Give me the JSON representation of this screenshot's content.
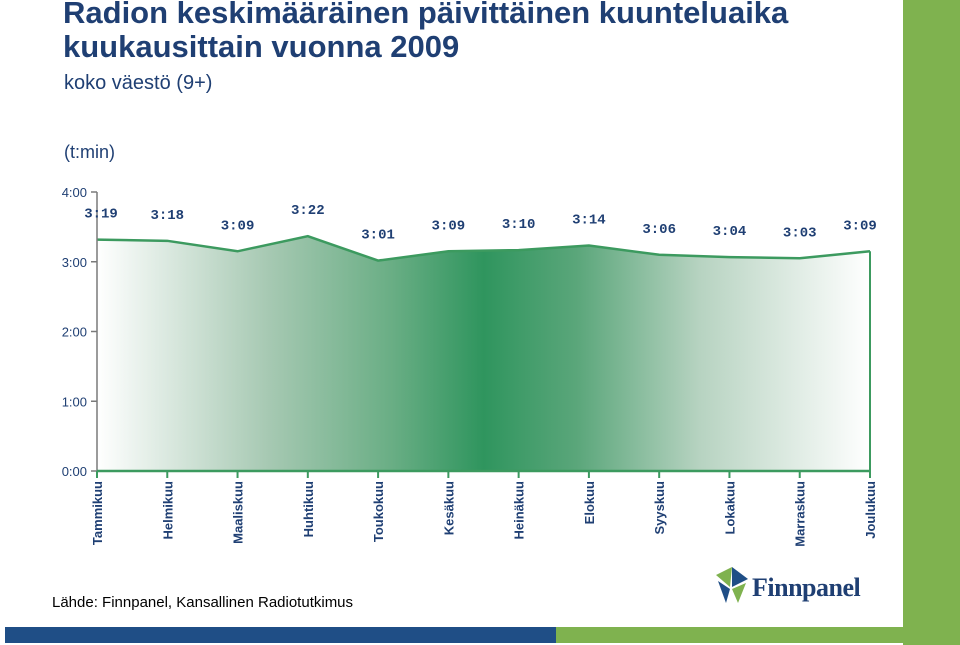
{
  "header": {
    "title": "Radion keskimääräinen päivittäinen kuunteluaika kuukausittain vuonna 2009",
    "subtitle": "koko väestö (9+)",
    "unit": "(t:min)"
  },
  "footer": {
    "source": "Lähde: Finnpanel, Kansallinen Radiotutkimus",
    "logo_text": "Finnpanel"
  },
  "colors": {
    "accent_green": "#7fb24f",
    "line_green": "#3c9a5f",
    "title_blue": "#1f3f73",
    "footer_blue": "#1f4e86"
  },
  "chart_data": {
    "type": "area",
    "title": "Radion keskimääräinen päivittäinen kuunteluaika kuukausittain vuonna 2009",
    "ylabel": "(t:min)",
    "ylim": [
      0,
      240
    ],
    "yticks": [
      {
        "value": 0,
        "label": "0:00"
      },
      {
        "value": 60,
        "label": "1:00"
      },
      {
        "value": 120,
        "label": "2:00"
      },
      {
        "value": 180,
        "label": "3:00"
      },
      {
        "value": 240,
        "label": "4:00"
      }
    ],
    "categories": [
      "Tammikuu",
      "Helmikuu",
      "Maaliskuu",
      "Huhtikuu",
      "Toukokuu",
      "Kesäkuu",
      "Heinäkuu",
      "Elokuu",
      "Syyskuu",
      "Lokakuu",
      "Marraskuu",
      "Joulukuu"
    ],
    "values": [
      199,
      198,
      189,
      202,
      181,
      189,
      190,
      194,
      186,
      184,
      183,
      189
    ],
    "labels": [
      "3:19",
      "3:18",
      "3:09",
      "3:22",
      "3:01",
      "3:09",
      "3:10",
      "3:14",
      "3:06",
      "3:04",
      "3:03",
      "3:09"
    ],
    "grid": false
  }
}
